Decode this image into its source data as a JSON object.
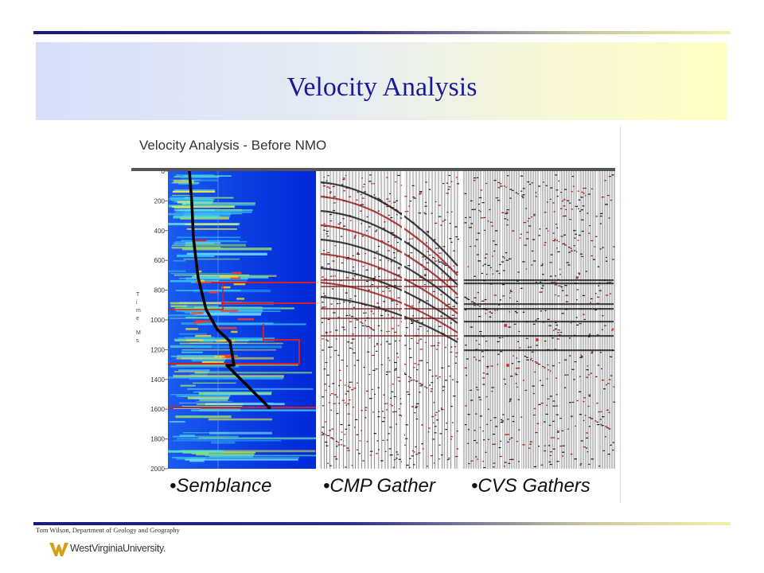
{
  "slide": {
    "title": "Velocity Analysis",
    "credit": "Tom Wilson, Department of Geology and Geography",
    "logo_text": "WestVirginiaUniversity."
  },
  "figure": {
    "caption": "Velocity Analysis - Before NMO",
    "panels": [
      "•Semblance",
      "•CMP Gather",
      "•CVS Gathers"
    ],
    "y_axis_ticks": [
      "0",
      "200",
      "400",
      "600",
      "800",
      "1000",
      "1200",
      "1400",
      "1600",
      "1800",
      "2000"
    ],
    "y_axis_title_letters": [
      "T",
      "i",
      "m",
      "e",
      "M",
      "s"
    ]
  },
  "colors": {
    "title": "#1a1a99",
    "rule_dark": "#1a1a7a",
    "rule_light": "#f2f2a8",
    "semblance_background": "#0a3ae0",
    "velocity_function": "#000000",
    "picks": "#d81e1e",
    "logo_gold": "#d4a017"
  }
}
